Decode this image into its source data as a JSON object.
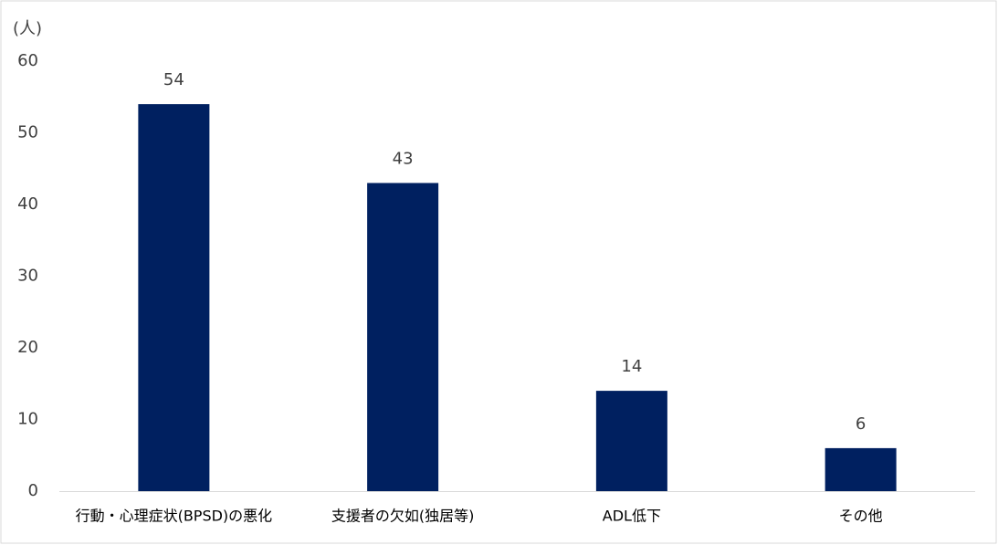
{
  "chart_data": {
    "type": "bar",
    "y_label": "(人)",
    "categories": [
      "行動・心理症状(BPSD)の悪化",
      "支援者の欠如(独居等)",
      "ADL低下",
      "その他"
    ],
    "values": [
      54,
      43,
      14,
      6
    ],
    "color": "#002060",
    "ylim": [
      0,
      60
    ],
    "yticks": [
      0,
      10,
      20,
      30,
      40,
      50,
      60
    ],
    "grid": false
  }
}
